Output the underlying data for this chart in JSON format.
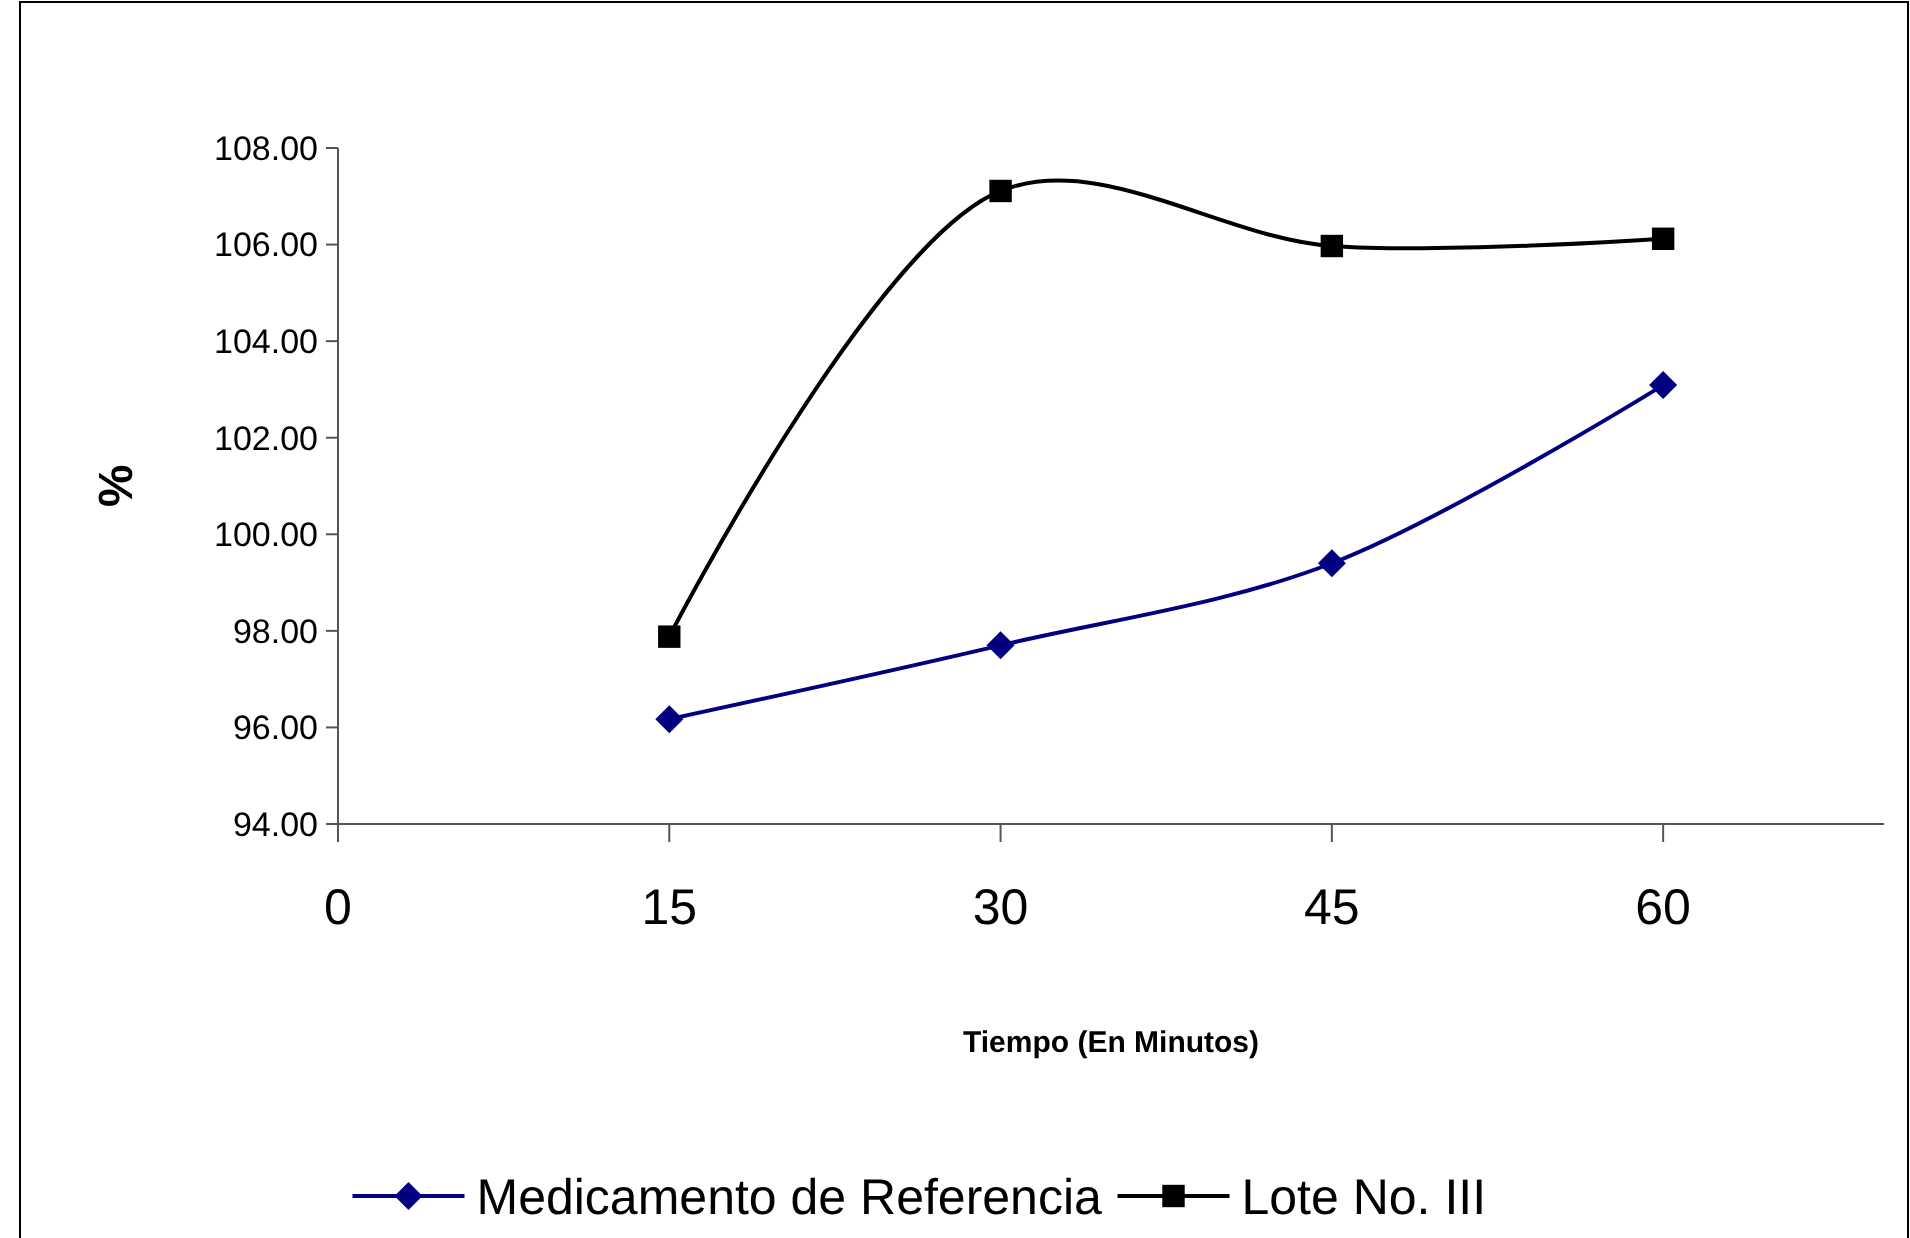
{
  "chart_data": {
    "type": "line",
    "xlabel": "Tiempo (En Minutos)",
    "ylabel": "%",
    "x": [
      15,
      30,
      45,
      60
    ],
    "series": [
      {
        "name": "Medicamento de Referencia",
        "color": "#000080",
        "marker": "diamond",
        "values": [
          96.17,
          97.7,
          99.4,
          103.09
        ]
      },
      {
        "name": "Lote No. III",
        "color": "#000000",
        "marker": "square",
        "values": [
          97.88,
          107.11,
          105.97,
          106.12
        ]
      }
    ],
    "xlim": [
      0,
      70
    ],
    "xticks": [
      0,
      15,
      30,
      45,
      60
    ],
    "ylim": [
      94,
      108
    ],
    "yticks": [
      {
        "value": 94,
        "label": "94.00"
      },
      {
        "value": 96,
        "label": "96.00"
      },
      {
        "value": 98,
        "label": "98.00"
      },
      {
        "value": 100,
        "label": "100.00"
      },
      {
        "value": 102,
        "label": "102.00"
      },
      {
        "value": 104,
        "label": "104.00"
      },
      {
        "value": 106,
        "label": "106.00"
      },
      {
        "value": 108,
        "label": "108.00"
      }
    ],
    "grid": false,
    "legend": "bottom",
    "line_style": "solid"
  }
}
